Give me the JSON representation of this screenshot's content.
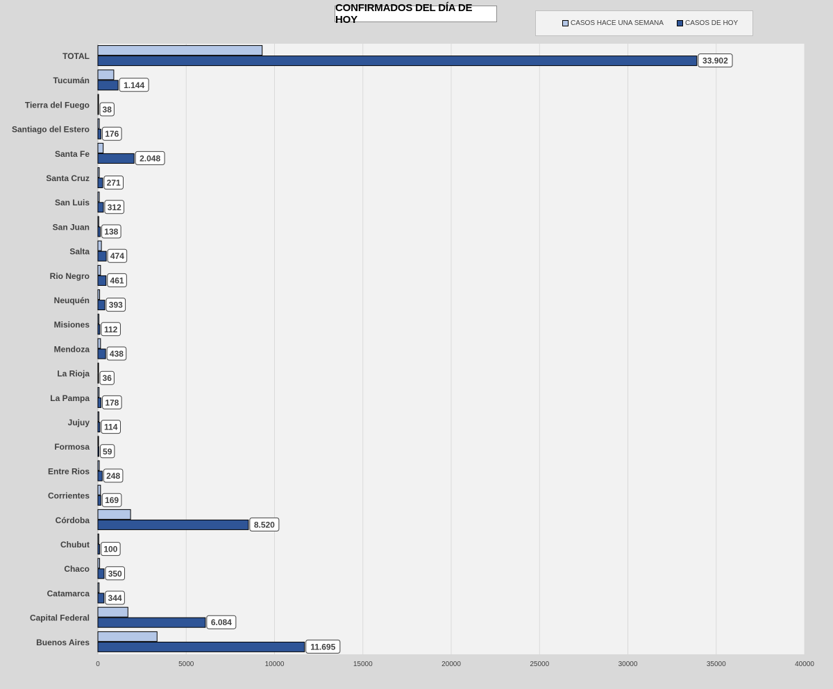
{
  "title": "CONFIRMADOS DEL DÍA DE HOY",
  "colors": {
    "background": "#d9d9d9",
    "plot_area": "#f2f2f2",
    "last_week": "#b4c7e7",
    "today": "#2f5597",
    "gridline": "#d9d9d9"
  },
  "chart_data": {
    "type": "bar",
    "orientation": "horizontal",
    "title": "CONFIRMADOS DEL DÍA DE HOY",
    "xlabel": "",
    "ylabel": "",
    "xlim": [
      0,
      40000
    ],
    "x_ticks": [
      0,
      5000,
      10000,
      15000,
      20000,
      25000,
      30000,
      35000,
      40000
    ],
    "grid": true,
    "legend_position": "top-right",
    "categories": [
      "TOTAL",
      "Tucumán",
      "Tierra del Fuego",
      "Santiago del Estero",
      "Santa Fe",
      "Santa Cruz",
      "San Luis",
      "San Juan",
      "Salta",
      "Rio Negro",
      "Neuquén",
      "Misiones",
      "Mendoza",
      "La Rioja",
      "La Pampa",
      "Jujuy",
      "Formosa",
      "Entre Rios",
      "Corrientes",
      "Córdoba",
      "Chubut",
      "Chaco",
      "Catamarca",
      "Capital Federal",
      "Buenos Aires"
    ],
    "series": [
      {
        "name": "CASOS HACE UNA SEMANA",
        "color": "#b4c7e7",
        "values": [
          9300,
          900,
          40,
          80,
          300,
          80,
          80,
          50,
          200,
          150,
          100,
          60,
          150,
          20,
          70,
          60,
          40,
          80,
          150,
          1850,
          50,
          100,
          70,
          1700,
          3350
        ]
      },
      {
        "name": "CASOS DE HOY",
        "color": "#2f5597",
        "values": [
          33902,
          1144,
          38,
          176,
          2048,
          271,
          312,
          138,
          474,
          461,
          393,
          112,
          438,
          36,
          178,
          114,
          59,
          248,
          169,
          8520,
          100,
          350,
          344,
          6084,
          11695
        ],
        "data_labels": [
          "33.902",
          "1.144",
          "38",
          "176",
          "2.048",
          "271",
          "312",
          "138",
          "474",
          "461",
          "393",
          "112",
          "438",
          "36",
          "178",
          "114",
          "59",
          "248",
          "169",
          "8.520",
          "100",
          "350",
          "344",
          "6.084",
          "11.695"
        ]
      }
    ]
  }
}
